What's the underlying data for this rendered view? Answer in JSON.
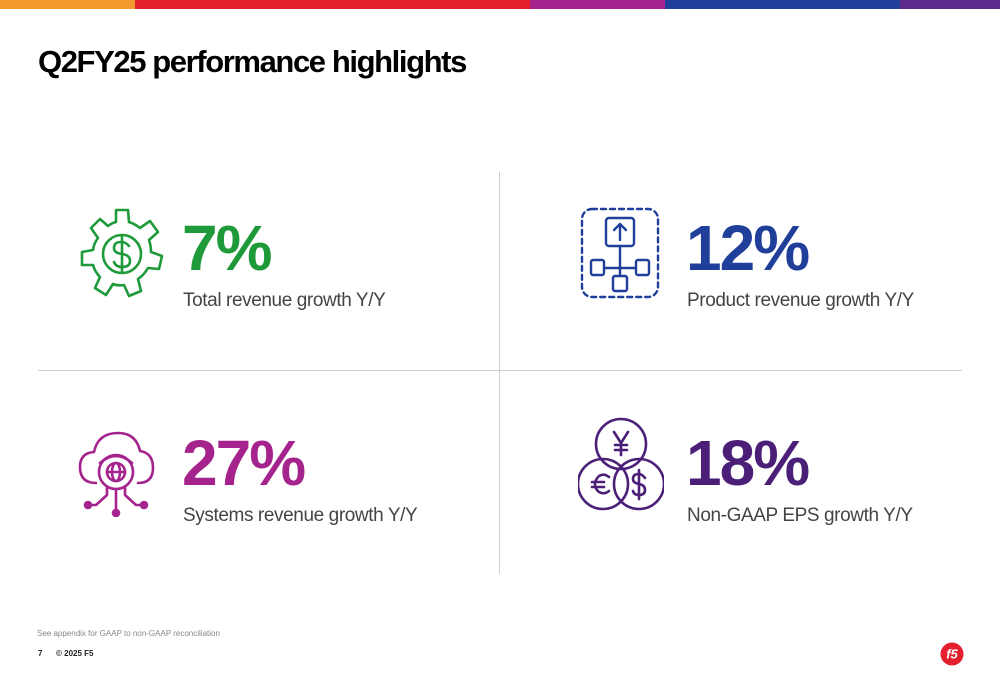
{
  "brand": {
    "bar_colors": [
      "#f29a2e",
      "#e4202e",
      "#a4238d",
      "#1f3f9a",
      "#5b2a8c"
    ],
    "logo": "f5-logo",
    "logo_color": "#e4202e"
  },
  "title": "Q2FY25 performance highlights",
  "metrics": [
    {
      "value": "7%",
      "label": "Total revenue growth Y/Y",
      "color": "#1f9a3a",
      "icon": "dollar-gear-icon"
    },
    {
      "value": "12%",
      "label": "Product revenue growth Y/Y",
      "color": "#1f3f9a",
      "icon": "product-flow-icon"
    },
    {
      "value": "27%",
      "label": "Systems revenue growth Y/Y",
      "color": "#a4238d",
      "icon": "cloud-globe-icon"
    },
    {
      "value": "18%",
      "label": "Non-GAAP EPS growth Y/Y",
      "color": "#4b1f78",
      "icon": "currency-circles-icon"
    }
  ],
  "footer": {
    "note": "See appendix for GAAP to non-GAAP reconciliation",
    "page": "7",
    "copyright": "© 2025 F5"
  }
}
